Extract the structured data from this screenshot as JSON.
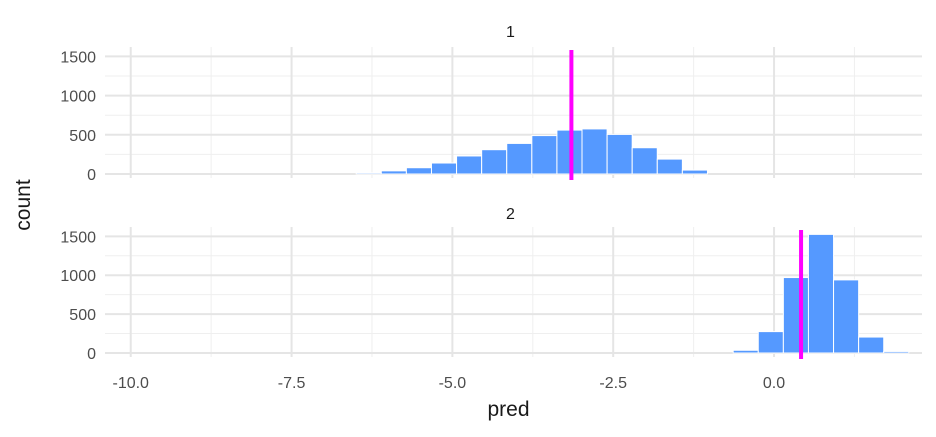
{
  "chart_data": {
    "type": "bar",
    "xlabel": "pred",
    "ylabel": "count",
    "x_ticks": [
      "-10.0",
      "-7.5",
      "-5.0",
      "-2.5",
      "0.0"
    ],
    "x_tick_values": [
      -10,
      -7.5,
      -5,
      -2.5,
      0
    ],
    "xlim": [
      -10.4,
      2.3
    ],
    "bin_width": 0.39,
    "grid": true,
    "facets": [
      {
        "label": "1",
        "y_ticks": [
          "1500",
          "1000",
          "500",
          "0"
        ],
        "y_tick_values": [
          1500,
          1000,
          500,
          0
        ],
        "ylim": [
          0,
          1620
        ],
        "bars": [
          {
            "x": -6.3,
            "count": 15
          },
          {
            "x": -5.91,
            "count": 40
          },
          {
            "x": -5.52,
            "count": 80
          },
          {
            "x": -5.13,
            "count": 140
          },
          {
            "x": -4.74,
            "count": 230
          },
          {
            "x": -4.35,
            "count": 310
          },
          {
            "x": -3.96,
            "count": 390
          },
          {
            "x": -3.57,
            "count": 490
          },
          {
            "x": -3.18,
            "count": 560
          },
          {
            "x": -2.79,
            "count": 575
          },
          {
            "x": -2.4,
            "count": 505
          },
          {
            "x": -2.01,
            "count": 335
          },
          {
            "x": -1.62,
            "count": 190
          },
          {
            "x": -1.23,
            "count": 50
          }
        ],
        "vline": -3.15
      },
      {
        "label": "2",
        "y_ticks": [
          "1500",
          "1000",
          "500",
          "0"
        ],
        "y_tick_values": [
          1500,
          1000,
          500,
          0
        ],
        "ylim": [
          0,
          1620
        ],
        "bars": [
          {
            "x": -0.44,
            "count": 35
          },
          {
            "x": -0.05,
            "count": 275
          },
          {
            "x": 0.34,
            "count": 970
          },
          {
            "x": 0.73,
            "count": 1525
          },
          {
            "x": 1.12,
            "count": 940
          },
          {
            "x": 1.51,
            "count": 205
          },
          {
            "x": 1.9,
            "count": 20
          }
        ],
        "vline": 0.42
      }
    ],
    "colors": {
      "bar_fill": "#5599ff",
      "bar_stroke": "#ffffff",
      "vline": "#ff00ff",
      "grid_major": "#e5e5e5",
      "grid_minor": "#efefef",
      "tick_text": "#4d4d4d",
      "title_text": "#1a1a1a"
    }
  }
}
